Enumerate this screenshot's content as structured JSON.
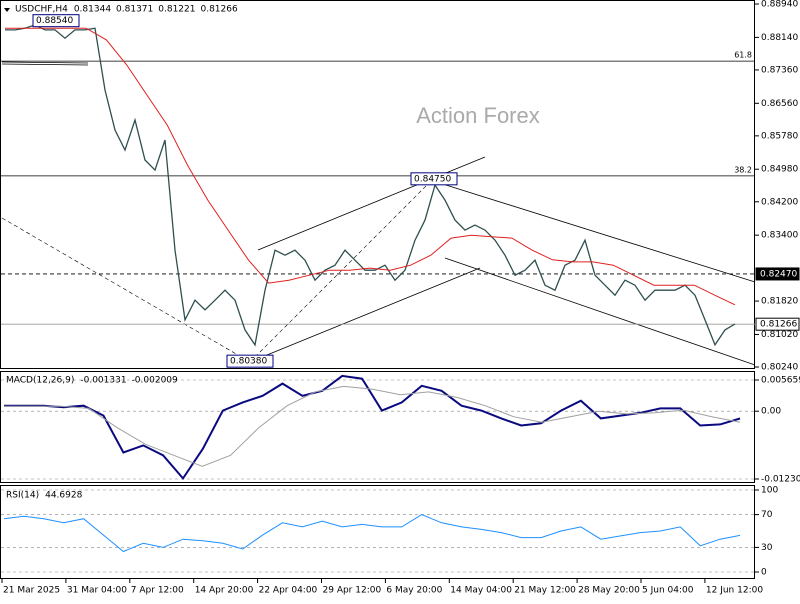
{
  "chart_data": [
    {
      "type": "line",
      "title": "USDCHF,H4",
      "ohlc": [
        0.81344,
        0.81371,
        0.81221,
        0.81266
      ],
      "watermark": "Action Forex",
      "ylim": [
        0.8024,
        0.8894
      ],
      "yticks": [
        {
          "value": 0.8894,
          "label": "0.88940"
        },
        {
          "value": 0.8814,
          "label": "0.88140"
        },
        {
          "value": 0.8736,
          "label": "0.87360"
        },
        {
          "value": 0.8656,
          "label": "0.86560"
        },
        {
          "value": 0.8578,
          "label": "0.85780"
        },
        {
          "value": 0.8498,
          "label": "0.84980"
        },
        {
          "value": 0.842,
          "label": "0.84200"
        },
        {
          "value": 0.834,
          "label": "0.83400"
        },
        {
          "value": 0.8182,
          "label": "0.81820"
        },
        {
          "value": 0.8102,
          "label": "0.81020"
        },
        {
          "value": 0.8024,
          "label": "0.80240"
        }
      ],
      "grid": false,
      "fib_levels": [
        {
          "name": "61.8",
          "value": 0.8757
        },
        {
          "name": "38.2",
          "value": 0.8482
        }
      ],
      "price_levels": [
        {
          "value": 0.8247,
          "label": "0.82470",
          "color": "#000000"
        },
        {
          "value": 0.81266,
          "label": "0.81266",
          "color": "#ffffff"
        }
      ],
      "pivots": [
        {
          "value": 0.8854,
          "label": "0.88540"
        },
        {
          "value": 0.8475,
          "label": "0.84750"
        },
        {
          "value": 0.8038,
          "label": "0.80380"
        }
      ],
      "series": [
        {
          "name": "USDCHF",
          "color": "#2f4f4f",
          "width": 1.3,
          "values": [
            0.8832,
            0.8832,
            0.8836,
            0.8844,
            0.8832,
            0.8832,
            0.8812,
            0.8832,
            0.8832,
            0.8836,
            0.8688,
            0.8592,
            0.8544,
            0.8616,
            0.852,
            0.8496,
            0.8568,
            0.8304,
            0.8137,
            0.8184,
            0.8161,
            0.8184,
            0.8208,
            0.8184,
            0.8113,
            0.8077,
            0.8208,
            0.8304,
            0.8292,
            0.8304,
            0.828,
            0.8232,
            0.8256,
            0.8268,
            0.8304,
            0.828,
            0.8256,
            0.8256,
            0.8268,
            0.8232,
            0.8256,
            0.8328,
            0.8376,
            0.846,
            0.8424,
            0.8376,
            0.8352,
            0.8364,
            0.8352,
            0.8328,
            0.8292,
            0.8244,
            0.8256,
            0.828,
            0.822,
            0.8208,
            0.8268,
            0.828,
            0.8328,
            0.8244,
            0.822,
            0.8196,
            0.8232,
            0.822,
            0.8184,
            0.8208,
            0.8208,
            0.8208,
            0.822,
            0.8196,
            0.8137,
            0.8077,
            0.8113,
            0.8127
          ]
        },
        {
          "name": "MA",
          "color": "#e02020",
          "width": 1,
          "values": [
            0.8836,
            0.8836,
            0.8836,
            0.8836,
            0.8836,
            0.8808,
            0.8748,
            0.8676,
            0.8604,
            0.8508,
            0.8424,
            0.8352,
            0.8281,
            0.8225,
            0.8232,
            0.8244,
            0.8256,
            0.8256,
            0.8261,
            0.8256,
            0.8268,
            0.8292,
            0.8333,
            0.834,
            0.8336,
            0.8333,
            0.8304,
            0.8281,
            0.8276,
            0.8276,
            0.8268,
            0.8244,
            0.822,
            0.822,
            0.822,
            0.8196,
            0.8173
          ]
        }
      ]
    },
    {
      "type": "line",
      "title": "MACD(12,26,9)",
      "header_values": [
        -0.001331,
        -0.002009
      ],
      "ylim": [
        -0.012301,
        0.005659
      ],
      "yticks": [
        0.005659,
        {
          "value": 0,
          "label": "0.00"
        },
        -0.012301
      ],
      "grid": true,
      "series": [
        {
          "name": "MACD",
          "color": "#0a0a80",
          "width": 2,
          "values": [
            0.001,
            0.001,
            0.001,
            0.0007,
            0.001,
            -0.0008,
            -0.0075,
            -0.0062,
            -0.008,
            -0.0122,
            -0.0068,
            0.0001,
            0.0016,
            0.0028,
            0.005,
            0.0028,
            0.0037,
            0.0064,
            0.0059,
            0.0001,
            0.0016,
            0.0046,
            0.0037,
            0.001,
            0.0001,
            -0.0013,
            -0.0026,
            -0.0022,
            0.0001,
            0.0019,
            -0.0013,
            -0.0008,
            -0.0003,
            0.0005,
            0.0005,
            -0.0026,
            -0.0024,
            -0.001331
          ]
        },
        {
          "name": "Signal",
          "color": "#a0a0a0",
          "width": 1,
          "values": [
            0.0009,
            0.0009,
            0.0009,
            0.0005,
            -0.003,
            -0.006,
            -0.008,
            -0.01,
            -0.008,
            -0.003,
            0.001,
            0.0035,
            0.0045,
            0.004,
            0.003,
            0.0035,
            0.0025,
            0.001,
            -0.001,
            -0.002,
            -0.001,
            0,
            -0.0005,
            -0.0003,
            0.0002,
            -0.001,
            -0.002009
          ]
        }
      ]
    },
    {
      "type": "line",
      "title": "RSI(14)",
      "header_values": [
        44.6928
      ],
      "ylim": [
        0,
        100
      ],
      "yticks": [
        100,
        70,
        30,
        0
      ],
      "grid": true,
      "x_labels": [
        "21 Mar 2025",
        "31 Mar 04:00",
        "7 Apr 12:00",
        "14 Apr 20:00",
        "22 Apr 04:00",
        "29 Apr 12:00",
        "6 May 20:00",
        "14 May 04:00",
        "21 May 12:00",
        "28 May 20:00",
        "5 Jun 04:00",
        "12 Jun 12:00"
      ],
      "series": [
        {
          "name": "RSI",
          "color": "#1e90ff",
          "width": 1,
          "values": [
            65,
            68,
            65,
            60,
            65,
            45,
            25,
            35,
            30,
            40,
            38,
            35,
            28,
            45,
            60,
            55,
            62,
            55,
            58,
            55,
            55,
            70,
            60,
            55,
            52,
            48,
            42,
            42,
            50,
            55,
            40,
            44,
            48,
            50,
            55,
            32,
            40,
            44.6928
          ]
        }
      ]
    }
  ]
}
